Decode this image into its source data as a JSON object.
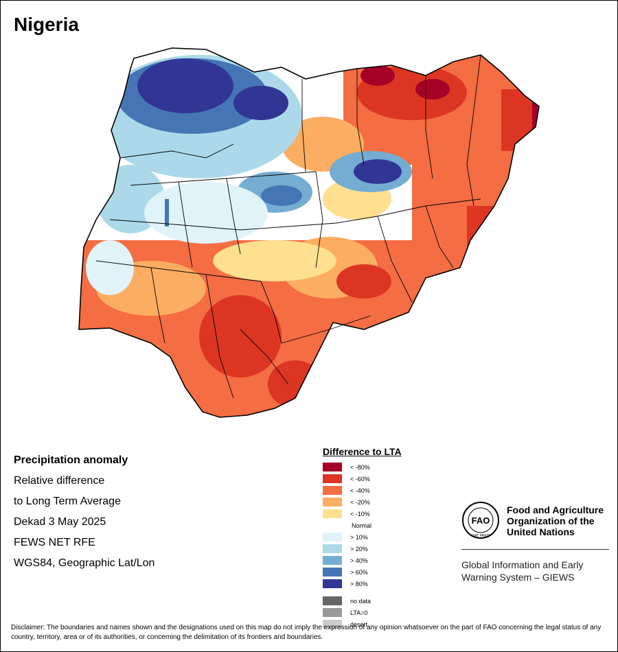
{
  "title": "Nigeria",
  "map": {
    "country": "Nigeria",
    "anomaly_pattern": [
      {
        "region": "northwest",
        "class": "> 80%"
      },
      {
        "region": "north-central",
        "class": "> 60%"
      },
      {
        "region": "west",
        "class": "> 20%"
      },
      {
        "region": "northeast",
        "class": "< -60%"
      },
      {
        "region": "far-northeast",
        "class": "< -80%"
      },
      {
        "region": "east",
        "class": "< -40%"
      },
      {
        "region": "south",
        "class": "< -40%"
      },
      {
        "region": "southwest",
        "class": "< -20%"
      }
    ],
    "colors": {
      "background": "#ffffff",
      "boundary": "#000000"
    }
  },
  "info": {
    "line1": "Precipitation anomaly",
    "line2": "Relative difference",
    "line3": "to Long Term Average",
    "line4": "Dekad 3 May 2025",
    "line5": "FEWS NET RFE",
    "line6": "WGS84, Geographic Lat/Lon"
  },
  "legend": {
    "title": "Difference to LTA",
    "dry": [
      {
        "label": "< -80%",
        "color": "#a50026"
      },
      {
        "label": "< -60%",
        "color": "#dc3623"
      },
      {
        "label": "< -40%",
        "color": "#f46d43"
      },
      {
        "label": "< -20%",
        "color": "#fbae61"
      },
      {
        "label": "< -10%",
        "color": "#fee090"
      }
    ],
    "normal": {
      "label": "Normal",
      "color": "#ffffff"
    },
    "wet": [
      {
        "label": "> 10%",
        "color": "#e0f3f8"
      },
      {
        "label": "> 20%",
        "color": "#abd9e9"
      },
      {
        "label": "> 40%",
        "color": "#74add1"
      },
      {
        "label": "> 60%",
        "color": "#4575b4"
      },
      {
        "label": "> 80%",
        "color": "#313695"
      }
    ],
    "other": [
      {
        "label": "no data",
        "color": "#666666"
      },
      {
        "label": "LTA=0",
        "color": "#999999"
      },
      {
        "label": "desert",
        "color": "#cccccc"
      }
    ]
  },
  "org": {
    "name": "Food and Agriculture Organization of the United Nations",
    "logo_text": "FAO",
    "logo_motto": "FIAT PANIS",
    "system": "Global Information and Early Warning System – GIEWS"
  },
  "disclaimer": "Disclaimer: The boundaries and names shown and the designations used on this map do not imply the expression of any opinion whatsoever on the part of FAO concerning the legal status of any country, territory, area or of its authorities, or concerning the delimitation of its frontiers and boundaries."
}
